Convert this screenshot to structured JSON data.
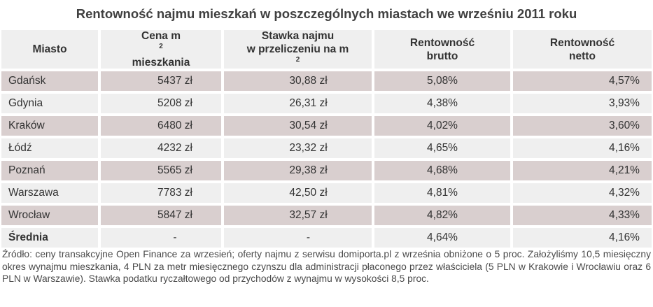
{
  "title": "Rentowność najmu mieszkań w poszczególnych miastach we wrześniu 2011 roku",
  "headers": {
    "city": "Miasto",
    "price_line1": "Cena m",
    "price_sup": "2",
    "price_line2": "mieszkania",
    "rent_line1": "Stawka najmu",
    "rent_line2": "w przeliczeniu na m",
    "rent_sup": "2",
    "gross_line1": "Rentowność",
    "gross_line2": "brutto",
    "net_line1": "Rentowność",
    "net_line2": "netto"
  },
  "rows": [
    {
      "city": "Gdańsk",
      "price": "5437 zł",
      "rent": "30,88 zł",
      "gross": "5,08%",
      "net": "4,57%"
    },
    {
      "city": "Gdynia",
      "price": "5208 zł",
      "rent": "26,31 zł",
      "gross": "4,38%",
      "net": "3,93%"
    },
    {
      "city": "Kraków",
      "price": "6480 zł",
      "rent": "30,54 zł",
      "gross": "4,02%",
      "net": "3,60%"
    },
    {
      "city": "Łódź",
      "price": "4232 zł",
      "rent": "23,32 zł",
      "gross": "4,65%",
      "net": "4,16%"
    },
    {
      "city": "Poznań",
      "price": "5565 zł",
      "rent": "29,38 zł",
      "gross": "4,68%",
      "net": "4,21%"
    },
    {
      "city": "Warszawa",
      "price": "7783 zł",
      "rent": "42,50 zł",
      "gross": "4,81%",
      "net": "4,32%"
    },
    {
      "city": "Wrocław",
      "price": "5847 zł",
      "rent": "32,57 zł",
      "gross": "4,82%",
      "net": "4,33%"
    }
  ],
  "average": {
    "city": "Średnia",
    "price": "-",
    "rent": "-",
    "gross": "4,64%",
    "net": "4,16%"
  },
  "source": "Źródło: ceny transakcyjne Open Finance za wrzesień; oferty najmu z serwisu domiporta.pl z września obniżone o 5 proc. Założyliśmy 10,5 miesięczny okres wynajmu mieszkania, 4 PLN za metr miesięcznego czynszu dla administracji płaconego przez właściciela (5 PLN w Krakowie i Wrocławiu oraz 6 PLN w Warszawie). Stawka podatku ryczałtowego od przychodów z wynajmu w wysokości 8,5 proc.",
  "colors": {
    "row_dark": "#d9cfcf",
    "row_light": "#efefef"
  }
}
